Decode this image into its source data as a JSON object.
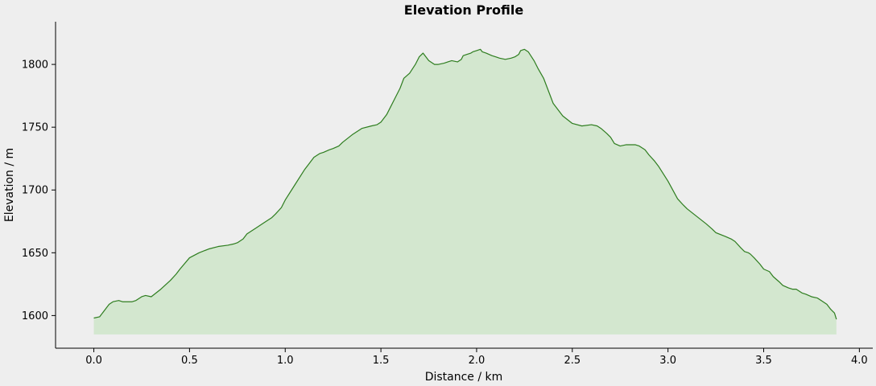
{
  "chart_data": {
    "type": "area",
    "title": "Elevation Profile",
    "xlabel": "Distance / km",
    "ylabel": "Elevation / m",
    "xlim": [
      -0.2,
      4.07
    ],
    "ylim": [
      1574,
      1834
    ],
    "fill_baseline": 1585,
    "xticks": [
      0.0,
      0.5,
      1.0,
      1.5,
      2.0,
      2.5,
      3.0,
      3.5,
      4.0
    ],
    "xtick_labels": [
      "0.0",
      "0.5",
      "1.0",
      "1.5",
      "2.0",
      "2.5",
      "3.0",
      "3.5",
      "4.0"
    ],
    "yticks": [
      1600,
      1650,
      1700,
      1750,
      1800
    ],
    "ytick_labels": [
      "1600",
      "1650",
      "1700",
      "1750",
      "1800"
    ],
    "grid": false,
    "legend": "none",
    "colors": {
      "line": "#2e7d1f",
      "fill": "#d3e7cf",
      "axes": "#000000",
      "background": "#eeeeee"
    },
    "series": [
      {
        "x": [
          0.0,
          0.03,
          0.05,
          0.08,
          0.1,
          0.13,
          0.15,
          0.2,
          0.22,
          0.25,
          0.27,
          0.3,
          0.35,
          0.4,
          0.43,
          0.45,
          0.5,
          0.55,
          0.6,
          0.65,
          0.7,
          0.73,
          0.75,
          0.78,
          0.8,
          0.85,
          0.88,
          0.9,
          0.93,
          0.95,
          0.98,
          1.0,
          1.05,
          1.1,
          1.13,
          1.15,
          1.17,
          1.18,
          1.2,
          1.23,
          1.25,
          1.28,
          1.3,
          1.35,
          1.4,
          1.45,
          1.48,
          1.5,
          1.53,
          1.55,
          1.58,
          1.6,
          1.62,
          1.65,
          1.68,
          1.7,
          1.72,
          1.75,
          1.78,
          1.8,
          1.83,
          1.85,
          1.87,
          1.9,
          1.92,
          1.93,
          1.95,
          1.97,
          1.98,
          2.0,
          2.02,
          2.03,
          2.05,
          2.08,
          2.1,
          2.12,
          2.15,
          2.18,
          2.2,
          2.22,
          2.23,
          2.25,
          2.27,
          2.3,
          2.32,
          2.35,
          2.38,
          2.4,
          2.45,
          2.5,
          2.55,
          2.6,
          2.63,
          2.65,
          2.68,
          2.7,
          2.72,
          2.75,
          2.78,
          2.8,
          2.83,
          2.85,
          2.88,
          2.9,
          2.93,
          2.95,
          3.0,
          3.05,
          3.08,
          3.1,
          3.15,
          3.2,
          3.23,
          3.25,
          3.3,
          3.33,
          3.35,
          3.38,
          3.4,
          3.42,
          3.43,
          3.45,
          3.48,
          3.5,
          3.53,
          3.55,
          3.58,
          3.6,
          3.63,
          3.65,
          3.67,
          3.7,
          3.72,
          3.75,
          3.78,
          3.8,
          3.83,
          3.85,
          3.87,
          3.88
        ],
        "y": [
          1598,
          1599,
          1603,
          1609,
          1611,
          1612,
          1611,
          1611,
          1612,
          1615,
          1616,
          1615,
          1621,
          1628,
          1633,
          1637,
          1646,
          1650,
          1653,
          1655,
          1656,
          1657,
          1658,
          1661,
          1665,
          1670,
          1673,
          1675,
          1678,
          1681,
          1686,
          1692,
          1704,
          1716,
          1722,
          1726,
          1728,
          1729,
          1730,
          1732,
          1733,
          1735,
          1738,
          1744,
          1749,
          1751,
          1752,
          1754,
          1760,
          1766,
          1775,
          1781,
          1789,
          1793,
          1800,
          1806,
          1809,
          1803,
          1800,
          1800,
          1801,
          1802,
          1803,
          1802,
          1804,
          1807,
          1808,
          1809,
          1810,
          1811,
          1812,
          1810,
          1809,
          1807,
          1806,
          1805,
          1804,
          1805,
          1806,
          1808,
          1811,
          1812,
          1810,
          1803,
          1797,
          1789,
          1777,
          1769,
          1759,
          1753,
          1751,
          1752,
          1751,
          1749,
          1745,
          1742,
          1737,
          1735,
          1736,
          1736,
          1736,
          1735,
          1732,
          1728,
          1723,
          1719,
          1707,
          1693,
          1688,
          1685,
          1679,
          1673,
          1669,
          1666,
          1663,
          1661,
          1659,
          1654,
          1651,
          1650,
          1649,
          1646,
          1641,
          1637,
          1635,
          1631,
          1627,
          1624,
          1622,
          1621,
          1621,
          1618,
          1617,
          1615,
          1614,
          1612,
          1609,
          1605,
          1602,
          1597
        ]
      }
    ]
  }
}
